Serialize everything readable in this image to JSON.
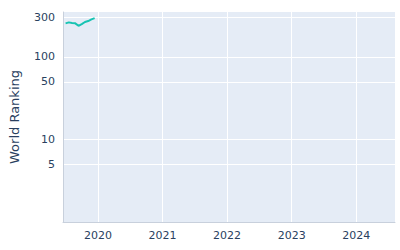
{
  "chart_data": {
    "type": "line",
    "ylabel": "World Ranking",
    "x": [
      2019.5,
      2019.55,
      2019.6,
      2019.65,
      2019.7,
      2019.75,
      2019.8,
      2019.85,
      2019.9,
      2019.95
    ],
    "values": [
      255,
      262,
      258,
      255,
      238,
      250,
      265,
      272,
      285,
      295
    ],
    "color": "#17c3b2",
    "xlim": [
      2019.46,
      2024.6
    ],
    "xticks": [
      2020,
      2021,
      2022,
      2023,
      2024
    ],
    "ylim": [
      1,
      350
    ],
    "yticks": [
      5,
      10,
      50,
      100,
      300
    ],
    "log": "y",
    "grid": true
  }
}
